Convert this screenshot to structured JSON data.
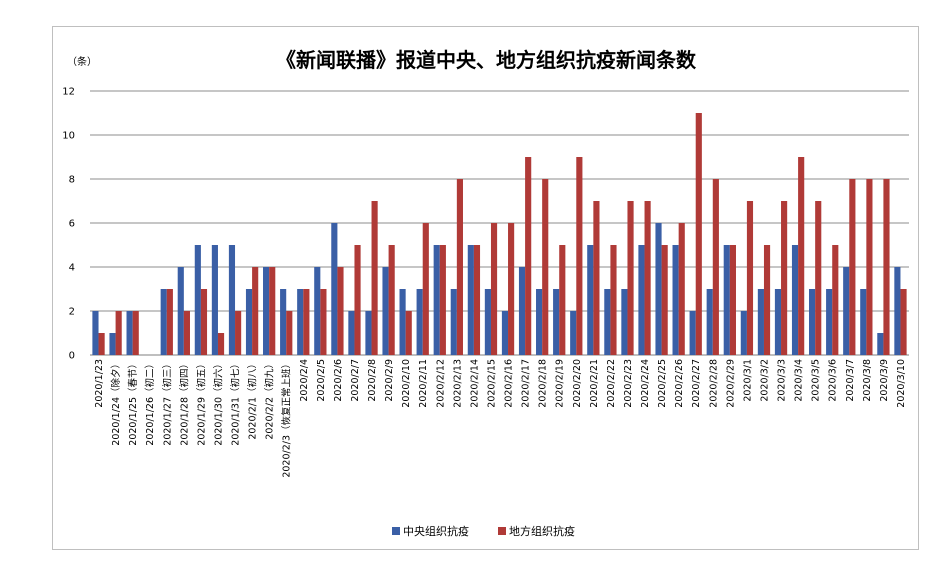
{
  "chart_data": {
    "type": "bar",
    "title": "《新闻联播》报道中央、地方组织抗疫新闻条数",
    "ylabel": "（条）",
    "ylim": [
      0,
      12
    ],
    "yticks": [
      0,
      2,
      4,
      6,
      8,
      10,
      12
    ],
    "grid": true,
    "legend_position": "bottom",
    "categories": [
      "2020/1/23",
      "2020/1/24（除夕）",
      "2020/1/25（春节）",
      "2020/1/26（初二）",
      "2020/1/27（初三）",
      "2020/1/28（初四）",
      "2020/1/29（初五）",
      "2020/1/30（初六）",
      "2020/1/31（初七）",
      "2020/2/1（初八）",
      "2020/2/2（初九）",
      "2020/2/3（恢复正常上班）",
      "2020/2/4",
      "2020/2/5",
      "2020/2/6",
      "2020/2/7",
      "2020/2/8",
      "2020/2/9",
      "2020/2/10",
      "2020/2/11",
      "2020/2/12",
      "2020/2/13",
      "2020/2/14",
      "2020/2/15",
      "2020/2/16",
      "2020/2/17",
      "2020/2/18",
      "2020/2/19",
      "2020/2/20",
      "2020/2/21",
      "2020/2/22",
      "2020/2/23",
      "2020/2/24",
      "2020/2/25",
      "2020/2/26",
      "2020/2/27",
      "2020/2/28",
      "2020/2/29",
      "2020/3/1",
      "2020/3/2",
      "2020/3/3",
      "2020/3/4",
      "2020/3/5",
      "2020/3/6",
      "2020/3/7",
      "2020/3/8",
      "2020/3/9",
      "2020/3/10"
    ],
    "series": [
      {
        "name": "中央组织抗疫",
        "color": "#3a5fa6",
        "values": [
          2,
          1,
          2,
          0,
          3,
          4,
          5,
          5,
          5,
          3,
          4,
          3,
          3,
          4,
          6,
          2,
          2,
          4,
          3,
          3,
          5,
          3,
          5,
          3,
          2,
          4,
          3,
          3,
          2,
          5,
          3,
          3,
          5,
          6,
          5,
          2,
          3,
          5,
          2,
          3,
          3,
          5,
          3,
          3,
          4,
          3,
          1,
          4
        ]
      },
      {
        "name": "地方组织抗疫",
        "color": "#b03a37",
        "values": [
          1,
          2,
          2,
          0,
          3,
          2,
          3,
          1,
          2,
          4,
          4,
          2,
          3,
          3,
          4,
          5,
          7,
          5,
          2,
          6,
          5,
          8,
          5,
          6,
          6,
          9,
          8,
          5,
          9,
          7,
          5,
          7,
          7,
          5,
          6,
          11,
          8,
          5,
          7,
          5,
          7,
          9,
          7,
          5,
          8,
          8,
          8,
          3
        ]
      }
    ]
  }
}
